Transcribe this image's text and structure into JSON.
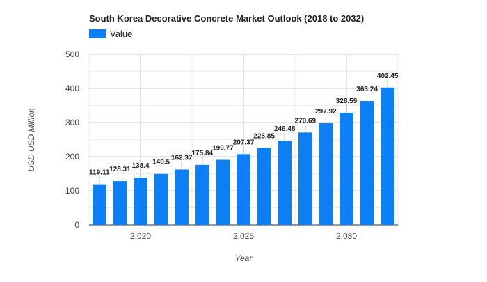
{
  "chart_data": {
    "type": "bar",
    "title": "South Korea Decorative Concrete Market Outlook (2018 to 2032)",
    "xlabel": "Year",
    "ylabel": "USD USD Million",
    "legend": {
      "entries": [
        "Value"
      ],
      "placement": "top-left"
    },
    "series": [
      {
        "name": "Value",
        "color": "#0d7ff5",
        "x": [
          2018,
          2019,
          2020,
          2021,
          2022,
          2023,
          2024,
          2025,
          2026,
          2027,
          2028,
          2029,
          2030,
          2031,
          2032
        ],
        "values": [
          119.11,
          128.31,
          138.4,
          149.5,
          162.37,
          175.84,
          190.77,
          207.37,
          225.85,
          246.48,
          270.69,
          297.92,
          328.59,
          363.24,
          402.45
        ],
        "labels": [
          "119.11",
          "128.31",
          "138.4",
          "149.5",
          "162.37",
          "175.84",
          "190.77",
          "207.37",
          "225.85",
          "246.48",
          "270.69",
          "297.92",
          "328.59",
          "363.24",
          "402.45"
        ]
      }
    ],
    "x_ticks": [
      2020,
      2025,
      2030
    ],
    "x_tick_labels": [
      "2,020",
      "2,025",
      "2,030"
    ],
    "y_ticks": [
      0,
      100,
      200,
      300,
      400,
      500
    ],
    "y_tick_labels": [
      "0",
      "100",
      "200",
      "300",
      "400",
      "500"
    ],
    "ylim": [
      0,
      500
    ],
    "grid": true
  }
}
